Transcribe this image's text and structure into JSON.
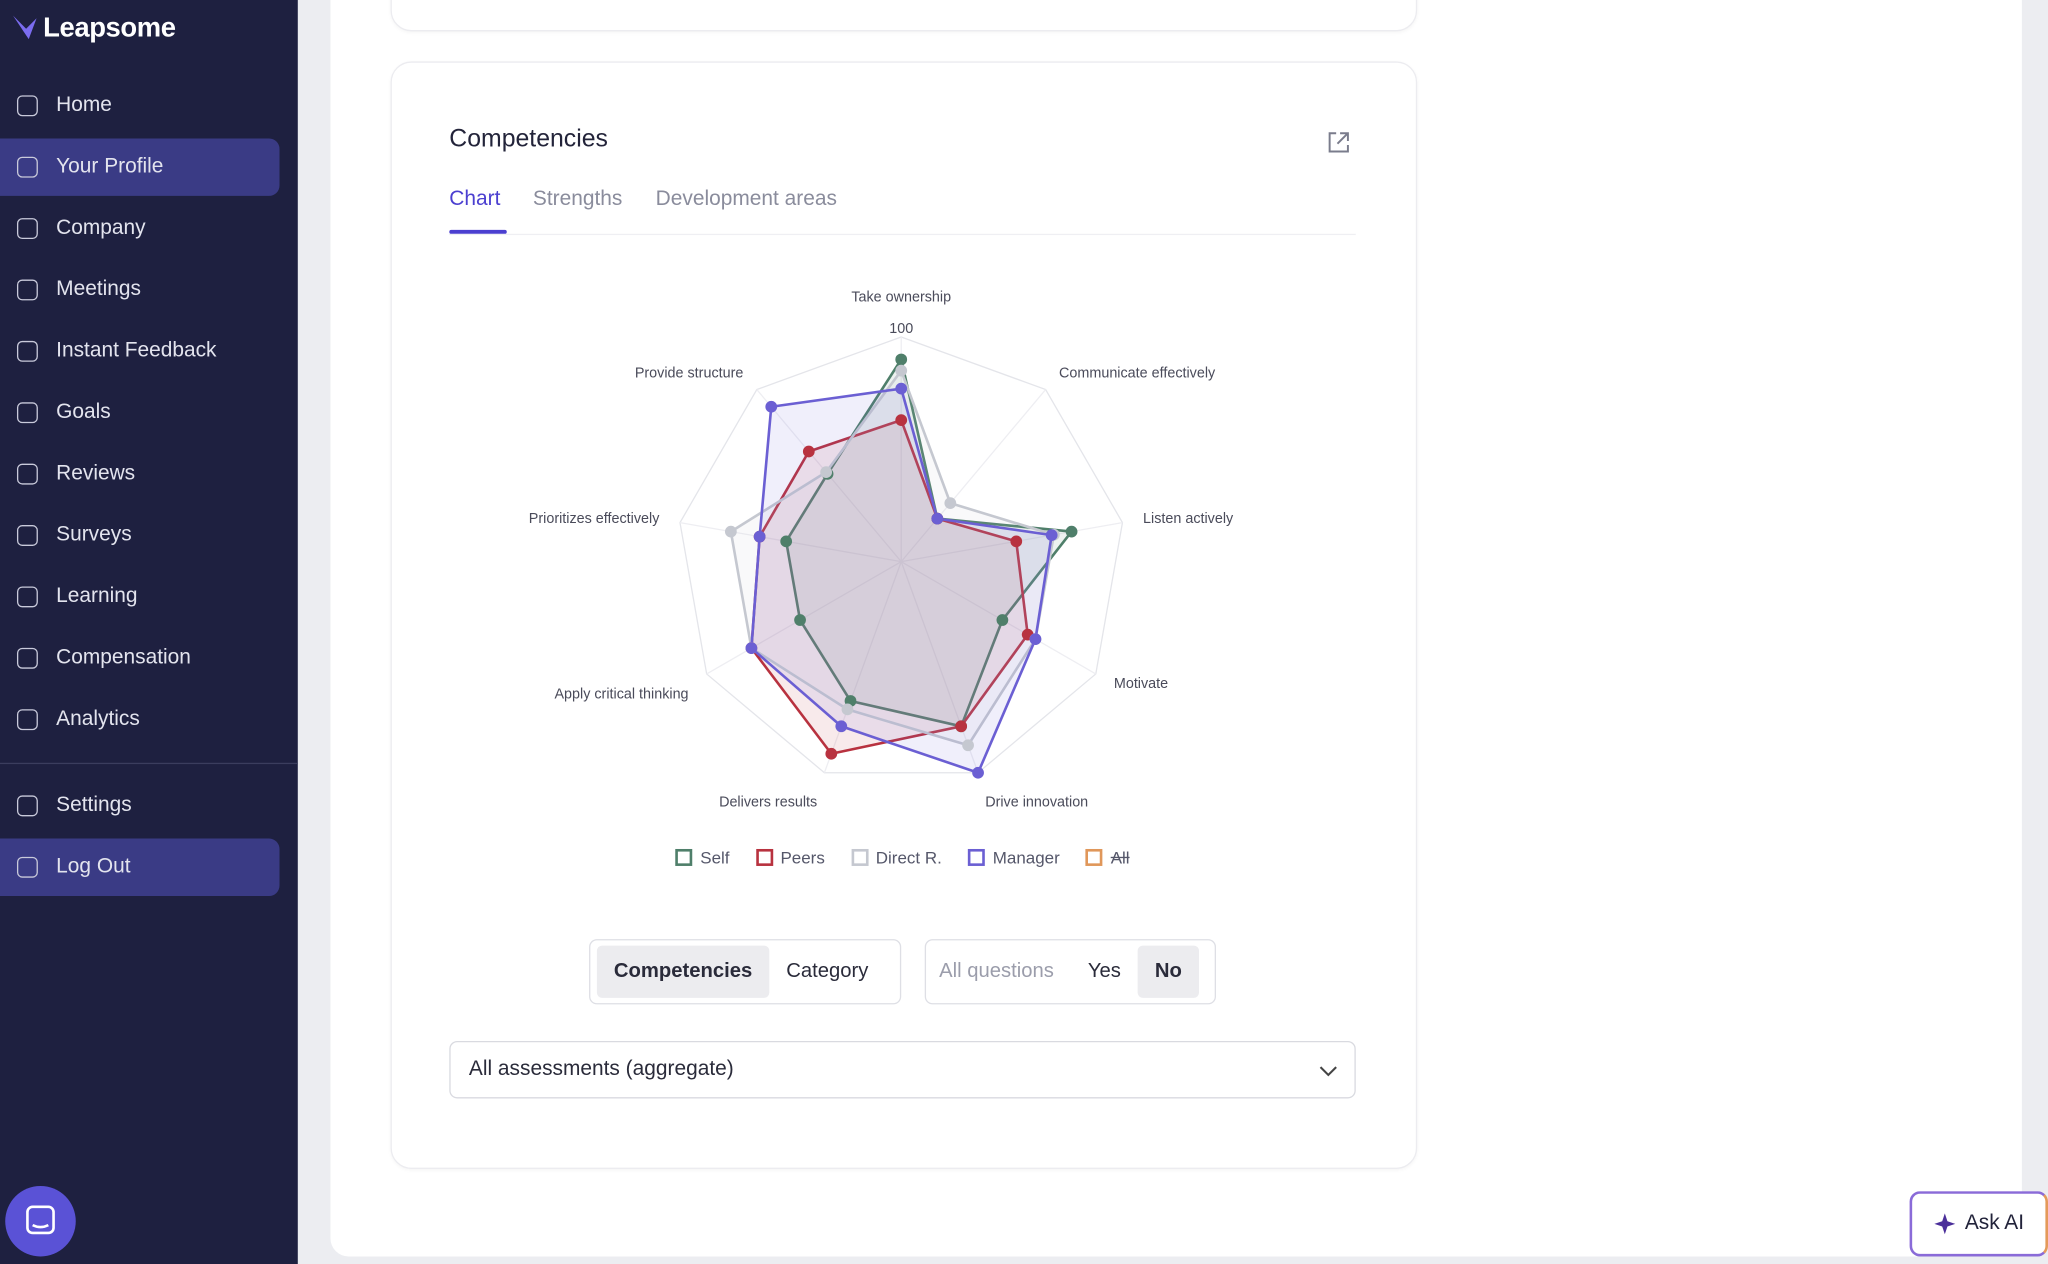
{
  "sidebar": {
    "logo": "Leapsome",
    "items": [
      "Home",
      "Your Profile",
      "Company",
      "Meetings",
      "Instant Feedback",
      "Goals",
      "Reviews",
      "Surveys",
      "Learning",
      "Compensation",
      "Analytics"
    ],
    "bottom_items": [
      "Settings",
      "Log Out"
    ]
  },
  "card": {
    "title": "Competencies",
    "tabs": [
      "Chart",
      "Strengths",
      "Development areas"
    ]
  },
  "chart_data": {
    "type": "radar",
    "categories": [
      "Take ownership",
      "Communicate effectively",
      "Listen actively",
      "Motivate",
      "Drive innovation",
      "Delivers results",
      "Apply critical thinking",
      "Prioritizes effectively",
      "Provide structure"
    ],
    "rlim": [
      0,
      100
    ],
    "rticks": [
      100
    ],
    "series": [
      {
        "name": "Self",
        "color": "#4f7f6a",
        "values": [
          90,
          25,
          77,
          52,
          78,
          66,
          52,
          52,
          51
        ]
      },
      {
        "name": "Peers",
        "color": "#b8323f",
        "values": [
          63,
          25,
          52,
          65,
          78,
          91,
          77,
          64,
          64
        ]
      },
      {
        "name": "Direct R.",
        "color": "#c5c8d0",
        "values": [
          85,
          34,
          69,
          69,
          87,
          70,
          77,
          77,
          52
        ]
      },
      {
        "name": "Manager",
        "color": "#6b5fd3",
        "values": [
          77,
          25,
          68,
          69,
          100,
          78,
          77,
          64,
          90
        ]
      },
      {
        "name": "All",
        "color": "#e0975a",
        "hidden": true,
        "values": [
          null,
          null,
          null,
          null,
          null,
          null,
          null,
          null,
          null
        ]
      }
    ]
  },
  "toggles": {
    "view": [
      "Competencies",
      "Category"
    ],
    "questions": [
      "All questions",
      "Yes",
      "No"
    ]
  },
  "select": "All assessments (aggregate)",
  "ask_ai": "Ask AI"
}
